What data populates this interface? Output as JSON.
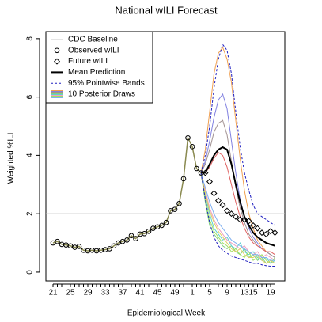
{
  "chart_data": {
    "type": "line",
    "title": "National wILI Forecast",
    "xlabel": "Epidemiological Week",
    "ylabel": "Weighted %ILI",
    "categories": [
      "21",
      null,
      null,
      null,
      "25",
      null,
      null,
      null,
      "29",
      null,
      null,
      null,
      "33",
      null,
      null,
      null,
      "37",
      null,
      null,
      null,
      "41",
      null,
      null,
      null,
      "45",
      null,
      null,
      null,
      "49",
      null,
      null,
      null,
      "1",
      null,
      null,
      null,
      "5",
      null,
      null,
      null,
      "9",
      null,
      null,
      null,
      "13",
      null,
      "15",
      null,
      null,
      null,
      "19",
      null
    ],
    "ylim": [
      -0.3,
      8.24
    ],
    "yticks": [
      0,
      2,
      4,
      6,
      8
    ],
    "legend": "top-left",
    "baseline": {
      "name": "CDC Baseline",
      "value": 2,
      "color": "#c8c8c8"
    },
    "series": [
      {
        "name": "Observed wILI",
        "marker": "circle",
        "color": "#000000",
        "line_color": "#8a8a50",
        "values": [
          1.0,
          1.05,
          0.95,
          0.93,
          0.9,
          0.85,
          0.88,
          0.75,
          0.73,
          0.75,
          0.73,
          0.75,
          0.77,
          0.8,
          0.9,
          1.0,
          1.05,
          1.1,
          1.25,
          1.15,
          1.3,
          1.32,
          1.4,
          1.5,
          1.55,
          1.6,
          1.7,
          2.1,
          2.15,
          2.35,
          3.2,
          4.6,
          4.3,
          3.55,
          3.4,
          null,
          null,
          null,
          null,
          null,
          null,
          null,
          null,
          null,
          null,
          null,
          null,
          null,
          null,
          null,
          null,
          null
        ]
      },
      {
        "name": "Future wILI",
        "marker": "diamond",
        "color": "#000000",
        "values": [
          null,
          null,
          null,
          null,
          null,
          null,
          null,
          null,
          null,
          null,
          null,
          null,
          null,
          null,
          null,
          null,
          null,
          null,
          null,
          null,
          null,
          null,
          null,
          null,
          null,
          null,
          null,
          null,
          null,
          null,
          null,
          null,
          null,
          null,
          null,
          3.4,
          3.1,
          2.7,
          2.45,
          2.3,
          2.1,
          2.0,
          1.9,
          1.8,
          1.8,
          1.75,
          1.6,
          1.5,
          1.35,
          1.3,
          1.4,
          1.35
        ]
      },
      {
        "name": "Mean Prediction",
        "color": "#000000",
        "values": [
          null,
          null,
          null,
          null,
          null,
          null,
          null,
          null,
          null,
          null,
          null,
          null,
          null,
          null,
          null,
          null,
          null,
          null,
          null,
          null,
          null,
          null,
          null,
          null,
          null,
          null,
          null,
          null,
          null,
          null,
          null,
          null,
          null,
          null,
          3.4,
          3.4,
          3.7,
          4.0,
          4.2,
          4.28,
          4.2,
          3.7,
          3.0,
          2.4,
          1.9,
          1.6,
          1.35,
          1.2,
          1.1,
          1.0,
          0.95,
          0.9
        ]
      },
      {
        "name": "95% Pointwise Bands",
        "color": "#2020c0",
        "upper": [
          null,
          null,
          null,
          null,
          null,
          null,
          null,
          null,
          null,
          null,
          null,
          null,
          null,
          null,
          null,
          null,
          null,
          null,
          null,
          null,
          null,
          null,
          null,
          null,
          null,
          null,
          null,
          null,
          null,
          null,
          null,
          null,
          null,
          null,
          3.4,
          4.0,
          5.0,
          6.3,
          7.3,
          7.8,
          7.6,
          6.8,
          5.5,
          4.3,
          3.4,
          2.8,
          2.3,
          2.0,
          1.9,
          1.8,
          1.7,
          1.6
        ],
        "lower": [
          null,
          null,
          null,
          null,
          null,
          null,
          null,
          null,
          null,
          null,
          null,
          null,
          null,
          null,
          null,
          null,
          null,
          null,
          null,
          null,
          null,
          null,
          null,
          null,
          null,
          null,
          null,
          null,
          null,
          null,
          null,
          null,
          null,
          null,
          3.4,
          2.5,
          1.7,
          1.2,
          0.9,
          0.75,
          0.65,
          0.55,
          0.5,
          0.45,
          0.4,
          0.35,
          0.3,
          0.3,
          0.25,
          0.22,
          0.2,
          0.2
        ]
      },
      {
        "name": "10 Posterior Draws",
        "colors": [
          "#f0a050",
          "#8080e0",
          "#a09090",
          "#e06060",
          "#80d080",
          "#60d0d0",
          "#f0a0c0",
          "#a0e060",
          "#e0d060",
          "#80b0f0"
        ],
        "draws": [
          [
            null,
            null,
            null,
            null,
            null,
            null,
            null,
            null,
            null,
            null,
            null,
            null,
            null,
            null,
            null,
            null,
            null,
            null,
            null,
            null,
            null,
            null,
            null,
            null,
            null,
            null,
            null,
            null,
            null,
            null,
            null,
            null,
            null,
            null,
            3.4,
            4.2,
            5.5,
            6.8,
            7.5,
            7.7,
            7.3,
            6.5,
            5.2,
            3.9,
            2.8,
            2.0,
            1.5,
            1.1,
            0.9,
            0.7,
            0.6,
            0.5
          ],
          [
            null,
            null,
            null,
            null,
            null,
            null,
            null,
            null,
            null,
            null,
            null,
            null,
            null,
            null,
            null,
            null,
            null,
            null,
            null,
            null,
            null,
            null,
            null,
            null,
            null,
            null,
            null,
            null,
            null,
            null,
            null,
            null,
            null,
            null,
            3.4,
            3.8,
            4.5,
            5.3,
            5.9,
            6.1,
            5.6,
            4.5,
            3.4,
            2.5,
            1.9,
            1.5,
            1.2,
            1.0,
            0.8,
            0.7,
            0.6,
            0.5
          ],
          [
            null,
            null,
            null,
            null,
            null,
            null,
            null,
            null,
            null,
            null,
            null,
            null,
            null,
            null,
            null,
            null,
            null,
            null,
            null,
            null,
            null,
            null,
            null,
            null,
            null,
            null,
            null,
            null,
            null,
            null,
            null,
            null,
            null,
            null,
            3.4,
            3.7,
            4.2,
            4.8,
            5.1,
            5.2,
            4.7,
            3.8,
            2.9,
            2.2,
            1.7,
            1.3,
            1.1,
            0.9,
            0.8,
            0.7,
            0.6,
            0.5
          ],
          [
            null,
            null,
            null,
            null,
            null,
            null,
            null,
            null,
            null,
            null,
            null,
            null,
            null,
            null,
            null,
            null,
            null,
            null,
            null,
            null,
            null,
            null,
            null,
            null,
            null,
            null,
            null,
            null,
            null,
            null,
            null,
            null,
            null,
            null,
            3.4,
            3.4,
            3.6,
            3.9,
            4.1,
            4.0,
            3.6,
            3.0,
            2.4,
            1.9,
            1.5,
            1.2,
            1.0,
            0.9,
            0.8,
            0.7,
            0.7,
            0.6
          ],
          [
            null,
            null,
            null,
            null,
            null,
            null,
            null,
            null,
            null,
            null,
            null,
            null,
            null,
            null,
            null,
            null,
            null,
            null,
            null,
            null,
            null,
            null,
            null,
            null,
            null,
            null,
            null,
            null,
            null,
            null,
            null,
            null,
            null,
            null,
            3.4,
            2.4,
            1.6,
            1.3,
            1.1,
            0.9,
            0.8,
            0.9,
            0.7,
            0.6,
            0.8,
            0.5,
            0.6,
            0.4,
            0.5,
            0.3,
            0.4,
            0.3
          ],
          [
            null,
            null,
            null,
            null,
            null,
            null,
            null,
            null,
            null,
            null,
            null,
            null,
            null,
            null,
            null,
            null,
            null,
            null,
            null,
            null,
            null,
            null,
            null,
            null,
            null,
            null,
            null,
            null,
            null,
            null,
            null,
            null,
            null,
            null,
            3.4,
            2.6,
            2.0,
            1.5,
            1.3,
            1.1,
            1.2,
            0.9,
            0.8,
            1.0,
            0.7,
            0.6,
            0.7,
            0.5,
            0.4,
            0.5,
            0.3,
            0.4
          ],
          [
            null,
            null,
            null,
            null,
            null,
            null,
            null,
            null,
            null,
            null,
            null,
            null,
            null,
            null,
            null,
            null,
            null,
            null,
            null,
            null,
            null,
            null,
            null,
            null,
            null,
            null,
            null,
            null,
            null,
            null,
            null,
            null,
            null,
            null,
            3.4,
            2.8,
            2.2,
            1.8,
            1.5,
            1.3,
            1.1,
            1.0,
            0.9,
            0.8,
            0.9,
            0.7,
            0.6,
            0.7,
            0.5,
            0.6,
            0.5,
            0.4
          ],
          [
            null,
            null,
            null,
            null,
            null,
            null,
            null,
            null,
            null,
            null,
            null,
            null,
            null,
            null,
            null,
            null,
            null,
            null,
            null,
            null,
            null,
            null,
            null,
            null,
            null,
            null,
            null,
            null,
            null,
            null,
            null,
            null,
            null,
            null,
            3.4,
            2.5,
            1.8,
            1.4,
            1.2,
            1.0,
            0.9,
            0.7,
            0.8,
            0.6,
            0.5,
            0.7,
            0.4,
            0.5,
            0.6,
            0.4,
            0.3,
            0.5
          ],
          [
            null,
            null,
            null,
            null,
            null,
            null,
            null,
            null,
            null,
            null,
            null,
            null,
            null,
            null,
            null,
            null,
            null,
            null,
            null,
            null,
            null,
            null,
            null,
            null,
            null,
            null,
            null,
            null,
            null,
            null,
            null,
            null,
            null,
            null,
            3.4,
            2.7,
            2.1,
            1.7,
            1.4,
            1.2,
            1.0,
            0.8,
            0.7,
            0.8,
            0.6,
            0.5,
            0.5,
            0.6,
            0.4,
            0.3,
            0.4,
            0.3
          ],
          [
            null,
            null,
            null,
            null,
            null,
            null,
            null,
            null,
            null,
            null,
            null,
            null,
            null,
            null,
            null,
            null,
            null,
            null,
            null,
            null,
            null,
            null,
            null,
            null,
            null,
            null,
            null,
            null,
            null,
            null,
            null,
            null,
            null,
            null,
            3.4,
            2.9,
            2.4,
            2.0,
            1.7,
            1.5,
            1.3,
            1.1,
            1.0,
            0.9,
            0.8,
            0.7,
            0.6,
            0.6,
            0.5,
            0.5,
            0.4,
            0.4
          ]
        ]
      }
    ]
  }
}
